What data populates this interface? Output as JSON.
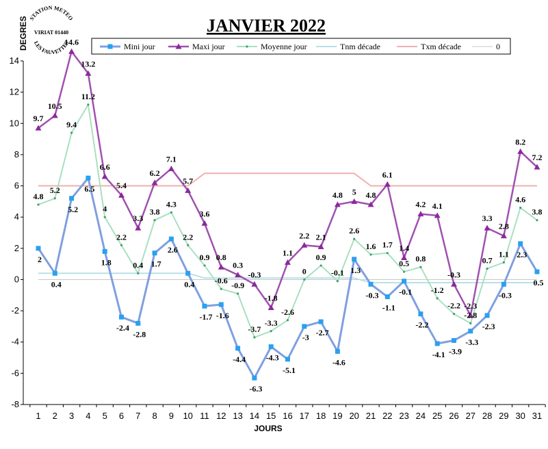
{
  "chart_data": {
    "type": "line",
    "title": "JANVIER 2022",
    "ylabel": "DEGRES",
    "xlabel": "JOURS",
    "ylim": [
      -8,
      14
    ],
    "yticks": [
      -8,
      -6,
      -4,
      -2,
      0,
      2,
      4,
      6,
      8,
      10,
      12,
      14
    ],
    "grid": false,
    "legend_position": "top",
    "x": [
      1,
      2,
      3,
      4,
      5,
      6,
      7,
      8,
      9,
      10,
      11,
      12,
      13,
      14,
      15,
      16,
      17,
      18,
      19,
      20,
      21,
      22,
      23,
      24,
      25,
      26,
      27,
      28,
      29,
      30,
      31
    ],
    "series": [
      {
        "name": "Mini jour",
        "color": "#7f9fe0",
        "marker": "square-star",
        "values": [
          2,
          0.4,
          5.2,
          6.5,
          1.8,
          -2.4,
          -2.8,
          1.7,
          2.6,
          0.4,
          -1.7,
          -1.6,
          -4.4,
          -6.3,
          -4.3,
          -5.1,
          -3,
          -2.7,
          -4.6,
          1.3,
          -0.3,
          -1.1,
          -0.1,
          -2.2,
          -4.1,
          -3.9,
          -3.3,
          -2.3,
          -0.3,
          2.3,
          0.5
        ],
        "labels": [
          "2",
          "0.4",
          "5.2",
          "6.5",
          "1.8",
          "-2.4",
          "-2.8",
          "1.7",
          "2.6",
          "0.4",
          "-1.7",
          "-1.6",
          "-4.4",
          "-6.3",
          "-4.3",
          "-5.1",
          "-3",
          "-2.7",
          "-4.6",
          "1.3",
          "-0.3",
          "-1.1",
          "-0.1",
          "-2.2",
          "-4.1",
          "-3.9",
          "-3.3",
          "-2.3",
          "-0.3",
          "2.3",
          "0.5"
        ]
      },
      {
        "name": "Maxi jour",
        "color": "#a050b0",
        "marker": "triangle",
        "values": [
          9.7,
          10.5,
          14.6,
          13.2,
          6.6,
          5.4,
          3.3,
          6.2,
          7.1,
          5.7,
          3.6,
          0.8,
          0.3,
          -0.3,
          -1.8,
          1.1,
          2.2,
          2.1,
          4.8,
          5,
          4.8,
          6.1,
          1.4,
          4.2,
          4.1,
          -0.3,
          -2.3,
          3.3,
          2.8,
          8.2,
          7.2
        ],
        "labels": [
          "9.7",
          "10.5",
          "14.6",
          "13.2",
          "6.6",
          "5.4",
          "3.3",
          "6.2",
          "7.1",
          "5.7",
          "3.6",
          "0.8",
          "0.3",
          "-0.3",
          "-1.8",
          "1.1",
          "2.2",
          "2.1",
          "4.8",
          "5",
          "4.8",
          "6.1",
          "1.4",
          "4.2",
          "4.1",
          "-0.3",
          "-2.3",
          "3.3",
          "2.8",
          "8.2",
          "7.2"
        ]
      },
      {
        "name": "Moyenne jour",
        "color": "#a8e0c0",
        "marker": "dot",
        "values": [
          4.8,
          5.2,
          9.4,
          11.2,
          4,
          2.2,
          0.4,
          3.8,
          4.3,
          2.2,
          0.9,
          -0.6,
          -0.9,
          -3.7,
          -3.3,
          -2.6,
          0,
          0.9,
          -0.1,
          2.6,
          1.6,
          1.7,
          0.5,
          0.8,
          -1.2,
          -2.2,
          -2.8,
          0.7,
          1.1,
          4.6,
          3.8
        ],
        "labels": [
          "4.8",
          "5.2",
          "9.4",
          "11.2",
          "4",
          "2.2",
          "0.4",
          "3.8",
          "4.3",
          "2.2",
          "0.9",
          "-0.6",
          "-0.9",
          "-3.7",
          "-3.3",
          "-2.6",
          "0",
          "0.9",
          "-0.1",
          "2.6",
          "1.6",
          "1.7",
          "0.5",
          "0.8",
          "-1.2",
          "-2.2",
          "-2.8",
          "0.7",
          "1.1",
          "4.6",
          "3.8"
        ]
      },
      {
        "name": "Tnm décade",
        "color": "#b8e0e8",
        "marker": "none",
        "values": [
          0.4,
          0.4,
          0.4,
          0.4,
          0.4,
          0.4,
          0.4,
          0.4,
          0.4,
          0.4,
          0.1,
          0.1,
          0.1,
          0.1,
          0.1,
          0.1,
          0.1,
          0.1,
          0.1,
          0.1,
          -0.2,
          -0.2,
          -0.2,
          -0.2,
          -0.2,
          -0.2,
          -0.2,
          -0.2,
          -0.2,
          -0.2,
          -0.2
        ]
      },
      {
        "name": "Txm décade",
        "color": "#f0b0b0",
        "marker": "none",
        "values": [
          6,
          6,
          6,
          6,
          6,
          6,
          6,
          6,
          6,
          6,
          6.8,
          6.8,
          6.8,
          6.8,
          6.8,
          6.8,
          6.8,
          6.8,
          6.8,
          6.8,
          6,
          6,
          6,
          6,
          6,
          6,
          6,
          6,
          6,
          6,
          6
        ]
      },
      {
        "name": "0",
        "color": "#c8c8c8",
        "marker": "none",
        "values": [
          0,
          0,
          0,
          0,
          0,
          0,
          0,
          0,
          0,
          0,
          0,
          0,
          0,
          0,
          0,
          0,
          0,
          0,
          0,
          0,
          0,
          0,
          0,
          0,
          0,
          0,
          0,
          0,
          0,
          0,
          0
        ]
      }
    ]
  },
  "stamp": {
    "top_text": "STATION METEO",
    "middle_text": "VIRIAT 01440",
    "bottom_text": "LES FAUVETTES"
  }
}
